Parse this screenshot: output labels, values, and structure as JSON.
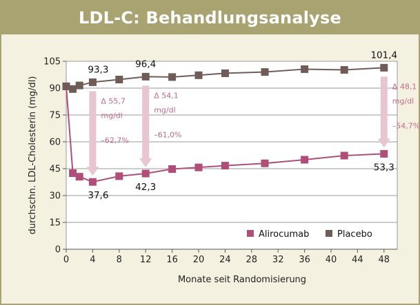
{
  "title": "LDL-C: Behandlungsanalyse",
  "colors": {
    "alirocumab": "#b04e79",
    "placebo": "#6f5c57",
    "arrow": "#e7c6d2",
    "delta_text": "#c56b8c",
    "header": "#a8a370",
    "background": "#f4f1e0"
  },
  "chart_data": {
    "type": "line",
    "xlabel": "Monate seit Randomisierung",
    "ylabel": "durchschn. LDL-Cholesterin (mg/dl)",
    "xlim": [
      0,
      50
    ],
    "ylim": [
      0,
      105
    ],
    "xticks": [
      0,
      4,
      8,
      12,
      16,
      20,
      24,
      28,
      32,
      36,
      40,
      44,
      48
    ],
    "yticks": [
      0,
      15,
      30,
      45,
      60,
      75,
      90,
      105
    ],
    "grid": "horizontal",
    "legend_position": "bottom-right",
    "series": [
      {
        "name": "Alirocumab",
        "x": [
          0,
          1,
          2,
          4,
          8,
          12,
          16,
          20,
          24,
          30,
          36,
          42,
          48
        ],
        "y": [
          91,
          42.5,
          40.5,
          37.6,
          40.8,
          42.3,
          44.8,
          45.7,
          46.7,
          48,
          50,
          52.3,
          53.3
        ]
      },
      {
        "name": "Placebo",
        "x": [
          0,
          1,
          2,
          4,
          8,
          12,
          16,
          20,
          24,
          30,
          36,
          42,
          48
        ],
        "y": [
          91,
          89.5,
          91.5,
          93.3,
          94.8,
          96.4,
          96.2,
          97.2,
          98.3,
          99,
          100.6,
          100.2,
          101.4
        ]
      }
    ],
    "value_labels": [
      {
        "series": "Placebo",
        "x": 4,
        "text": "93,3"
      },
      {
        "series": "Placebo",
        "x": 12,
        "text": "96,4"
      },
      {
        "series": "Placebo",
        "x": 48,
        "text": "101,4"
      },
      {
        "series": "Alirocumab",
        "x": 4,
        "text": "37,6"
      },
      {
        "series": "Alirocumab",
        "x": 12,
        "text": "42,3"
      },
      {
        "series": "Alirocumab",
        "x": 48,
        "text": "53,3"
      }
    ],
    "annotations": [
      {
        "x": 4,
        "from": 93.3,
        "to": 37.6,
        "delta": "Δ 55,7",
        "unit": "mg/dl",
        "percent": "–62,7%"
      },
      {
        "x": 12,
        "from": 96.4,
        "to": 42.3,
        "delta": "Δ 54,1",
        "unit": "mg/dl",
        "percent": "–61,0%"
      },
      {
        "x": 48,
        "from": 101.4,
        "to": 53.3,
        "delta": "Δ 48,1",
        "unit": "mg/dl",
        "percent": "–54,7%"
      }
    ]
  }
}
